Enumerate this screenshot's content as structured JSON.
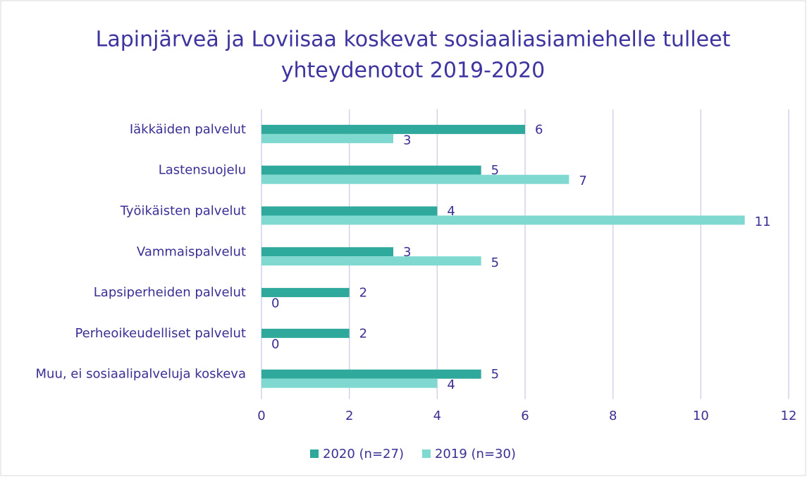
{
  "chart_data": {
    "type": "bar",
    "orientation": "horizontal",
    "title": [
      "Lapinjärveä ja Loviisaa koskevat sosiaaliasiamiehelle tulleet",
      "yhteydenotot 2019-2020"
    ],
    "categories": [
      "Iäkkäiden palvelut",
      "Lastensuojelu",
      "Työikäisten palvelut",
      "Vammaispalvelut",
      "Lapsiperheiden palvelut",
      "Perheoikeudelliset palvelut",
      "Muu, ei sosiaalipalveluja koskeva"
    ],
    "series": [
      {
        "name": "2020 (n=27)",
        "color": "#2fa99b",
        "values": [
          6,
          5,
          4,
          3,
          2,
          2,
          5
        ]
      },
      {
        "name": "2019 (n=30)",
        "color": "#80d9d1",
        "values": [
          3,
          7,
          11,
          5,
          0,
          0,
          4
        ]
      }
    ],
    "xlim": [
      0,
      12
    ],
    "xticks": [
      0,
      2,
      4,
      6,
      8,
      10,
      12
    ],
    "grid": true,
    "legend": "bottom"
  }
}
